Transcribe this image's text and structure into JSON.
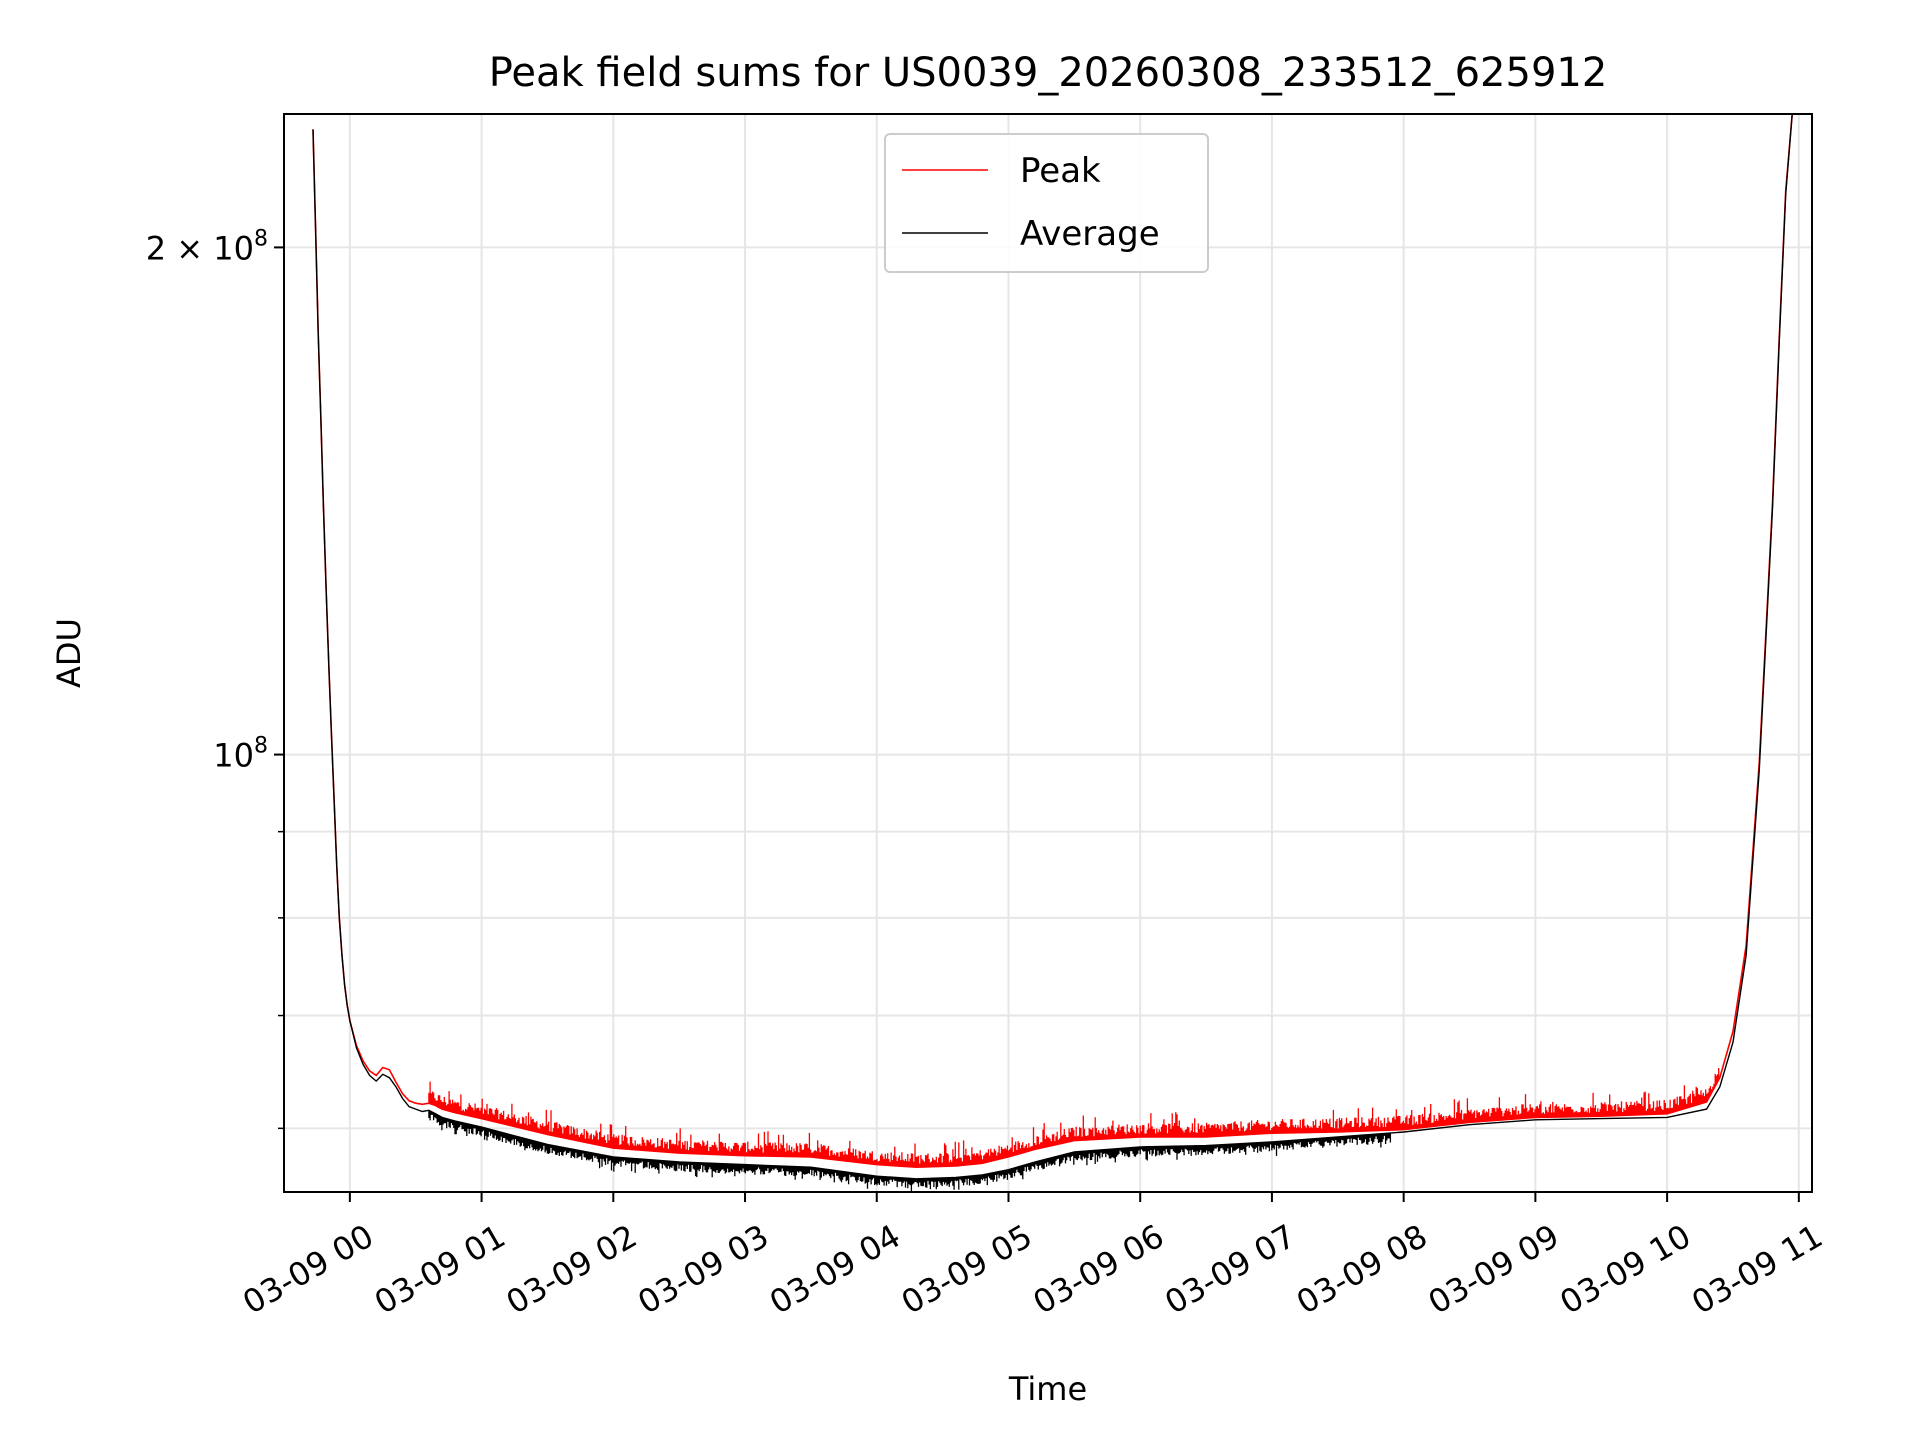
{
  "chart_data": {
    "type": "line",
    "title": "Peak field sums for US0039_20260308_233512_625912",
    "xlabel": "Time",
    "ylabel": "ADU",
    "yscale": "log",
    "grid": true,
    "legend_position": "upper-center",
    "x_unit": "hours since 03-09 00:00",
    "xlim": [
      -0.5,
      11.1
    ],
    "ylim": [
      55000000,
      240000000
    ],
    "x_ticks": [
      {
        "value": 0,
        "label": "03-09 00"
      },
      {
        "value": 1,
        "label": "03-09 01"
      },
      {
        "value": 2,
        "label": "03-09 02"
      },
      {
        "value": 3,
        "label": "03-09 03"
      },
      {
        "value": 4,
        "label": "03-09 04"
      },
      {
        "value": 5,
        "label": "03-09 05"
      },
      {
        "value": 6,
        "label": "03-09 06"
      },
      {
        "value": 7,
        "label": "03-09 07"
      },
      {
        "value": 8,
        "label": "03-09 08"
      },
      {
        "value": 9,
        "label": "03-09 09"
      },
      {
        "value": 10,
        "label": "03-09 10"
      },
      {
        "value": 11,
        "label": "03-09 11"
      }
    ],
    "y_major_ticks": [
      {
        "value": 100000000,
        "base": "10",
        "exp": "8"
      },
      {
        "value": 200000000,
        "base": "2 × 10",
        "exp": "8"
      }
    ],
    "y_minor_ticks": [
      60000000,
      70000000,
      80000000,
      90000000
    ],
    "series": [
      {
        "name": "Average",
        "color": "#000000",
        "x": [
          -0.28,
          -0.26,
          -0.24,
          -0.22,
          -0.2,
          -0.18,
          -0.16,
          -0.14,
          -0.12,
          -0.1,
          -0.08,
          -0.06,
          -0.04,
          -0.02,
          0,
          0.05,
          0.1,
          0.15,
          0.2,
          0.25,
          0.3,
          0.35,
          0.4,
          0.45,
          0.5,
          0.55,
          0.6,
          0.65,
          0.7,
          0.8,
          1,
          1.5,
          2,
          2.5,
          3,
          3.5,
          4,
          4.3,
          4.6,
          4.8,
          5,
          5.2,
          5.5,
          6,
          6.5,
          7,
          7.5,
          8,
          8.5,
          9,
          9.5,
          10,
          10.3,
          10.4,
          10.5,
          10.6,
          10.7,
          10.8,
          10.85,
          10.9,
          10.95
        ],
        "y": [
          235000000,
          205000000,
          178000000,
          158000000,
          140000000,
          125000000,
          113000000,
          103000000,
          94000000,
          86000000,
          80000000,
          76000000,
          73000000,
          71000000,
          69500000,
          67000000,
          65500000,
          64500000,
          64000000,
          64600000,
          64300000,
          63500000,
          62500000,
          61800000,
          61600000,
          61400000,
          61500000,
          61200000,
          60900000,
          60600000,
          60100000,
          58700000,
          57700000,
          57300000,
          57100000,
          56900000,
          56200000,
          56000000,
          56100000,
          56300000,
          56700000,
          57300000,
          58100000,
          58500000,
          58600000,
          58900000,
          59300000,
          59700000,
          60300000,
          60700000,
          60800000,
          60900000,
          61600000,
          63500000,
          67500000,
          76000000,
          98000000,
          140000000,
          175000000,
          215000000,
          240000000
        ]
      },
      {
        "name": "Peak",
        "color": "#ff0000",
        "x": [
          -0.28,
          -0.26,
          -0.24,
          -0.22,
          -0.2,
          -0.18,
          -0.16,
          -0.14,
          -0.12,
          -0.1,
          -0.08,
          -0.06,
          -0.04,
          -0.02,
          0,
          0.05,
          0.1,
          0.15,
          0.2,
          0.25,
          0.3,
          0.35,
          0.4,
          0.45,
          0.5,
          0.55,
          0.6,
          0.65,
          0.7,
          0.8,
          1,
          1.5,
          2,
          2.5,
          3,
          3.5,
          4,
          4.3,
          4.6,
          4.8,
          5,
          5.2,
          5.5,
          6,
          6.5,
          7,
          7.5,
          8,
          8.5,
          9,
          9.5,
          10,
          10.3,
          10.4,
          10.5,
          10.6,
          10.7,
          10.8,
          10.85,
          10.9,
          10.95
        ],
        "y": [
          235000000,
          205000000,
          178000000,
          158000000,
          140000000,
          125000000,
          113000000,
          103000000,
          94000000,
          86000000,
          80000000,
          76000000,
          73000000,
          71000000,
          69500000,
          67200000,
          65800000,
          64900000,
          64500000,
          65200000,
          65000000,
          63900000,
          62900000,
          62300000,
          62100000,
          62000000,
          62100000,
          61900000,
          61600000,
          61300000,
          60800000,
          59500000,
          58400000,
          58000000,
          57800000,
          57700000,
          57100000,
          56900000,
          57000000,
          57200000,
          57700000,
          58300000,
          59000000,
          59300000,
          59300000,
          59600000,
          59700000,
          59900000,
          60500000,
          60900000,
          61000000,
          61200000,
          62200000,
          64300000,
          68500000,
          77000000,
          99000000,
          141000000,
          176000000,
          216000000,
          240000000
        ]
      }
    ],
    "series_noise": {
      "Peak": {
        "direction": "up",
        "x_range": [
          0.6,
          10.4
        ],
        "typical_spike_pct": 1.5,
        "max_spike_pct": 3.5
      },
      "Average": {
        "direction": "down",
        "x_range": [
          0.6,
          7.9
        ],
        "typical_spike_pct": 1.0,
        "max_spike_pct": 2.0
      }
    }
  },
  "legend": {
    "items": [
      {
        "label": "Peak",
        "color": "#ff0000"
      },
      {
        "label": "Average",
        "color": "#000000"
      }
    ]
  }
}
